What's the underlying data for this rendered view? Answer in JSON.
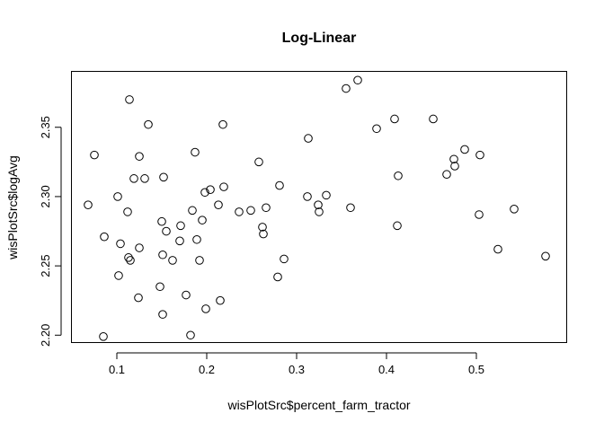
{
  "chart_data": {
    "type": "scatter",
    "title": "Log-Linear",
    "xlabel": "wisPlotSrc$percent_farm_tractor",
    "ylabel": "wisPlotSrc$logAvg",
    "xlim": [
      0.05,
      0.6
    ],
    "ylim": [
      2.195,
      2.39
    ],
    "x_ticks": [
      0.1,
      0.2,
      0.3,
      0.4,
      0.5
    ],
    "x_tick_labels": [
      "0.1",
      "0.2",
      "0.3",
      "0.4",
      "0.5"
    ],
    "y_ticks": [
      2.2,
      2.25,
      2.3,
      2.35
    ],
    "y_tick_labels": [
      "2.20",
      "2.25",
      "2.30",
      "2.35"
    ],
    "grid": false,
    "marker": "open-circle",
    "points": [
      {
        "x": 0.068,
        "y": 2.294
      },
      {
        "x": 0.075,
        "y": 2.33
      },
      {
        "x": 0.085,
        "y": 2.199
      },
      {
        "x": 0.086,
        "y": 2.271
      },
      {
        "x": 0.101,
        "y": 2.3
      },
      {
        "x": 0.102,
        "y": 2.243
      },
      {
        "x": 0.104,
        "y": 2.266
      },
      {
        "x": 0.112,
        "y": 2.289
      },
      {
        "x": 0.113,
        "y": 2.256
      },
      {
        "x": 0.114,
        "y": 2.37
      },
      {
        "x": 0.115,
        "y": 2.254
      },
      {
        "x": 0.119,
        "y": 2.313
      },
      {
        "x": 0.124,
        "y": 2.227
      },
      {
        "x": 0.125,
        "y": 2.263
      },
      {
        "x": 0.125,
        "y": 2.329
      },
      {
        "x": 0.131,
        "y": 2.313
      },
      {
        "x": 0.135,
        "y": 2.352
      },
      {
        "x": 0.148,
        "y": 2.235
      },
      {
        "x": 0.15,
        "y": 2.282
      },
      {
        "x": 0.151,
        "y": 2.215
      },
      {
        "x": 0.151,
        "y": 2.258
      },
      {
        "x": 0.152,
        "y": 2.314
      },
      {
        "x": 0.155,
        "y": 2.275
      },
      {
        "x": 0.162,
        "y": 2.254
      },
      {
        "x": 0.17,
        "y": 2.268
      },
      {
        "x": 0.171,
        "y": 2.279
      },
      {
        "x": 0.177,
        "y": 2.229
      },
      {
        "x": 0.182,
        "y": 2.2
      },
      {
        "x": 0.184,
        "y": 2.29
      },
      {
        "x": 0.187,
        "y": 2.332
      },
      {
        "x": 0.189,
        "y": 2.269
      },
      {
        "x": 0.192,
        "y": 2.254
      },
      {
        "x": 0.195,
        "y": 2.283
      },
      {
        "x": 0.198,
        "y": 2.303
      },
      {
        "x": 0.199,
        "y": 2.219
      },
      {
        "x": 0.204,
        "y": 2.305
      },
      {
        "x": 0.213,
        "y": 2.294
      },
      {
        "x": 0.215,
        "y": 2.225
      },
      {
        "x": 0.218,
        "y": 2.352
      },
      {
        "x": 0.219,
        "y": 2.307
      },
      {
        "x": 0.236,
        "y": 2.289
      },
      {
        "x": 0.249,
        "y": 2.29
      },
      {
        "x": 0.258,
        "y": 2.325
      },
      {
        "x": 0.262,
        "y": 2.278
      },
      {
        "x": 0.263,
        "y": 2.273
      },
      {
        "x": 0.266,
        "y": 2.292
      },
      {
        "x": 0.279,
        "y": 2.242
      },
      {
        "x": 0.281,
        "y": 2.308
      },
      {
        "x": 0.286,
        "y": 2.255
      },
      {
        "x": 0.312,
        "y": 2.3
      },
      {
        "x": 0.313,
        "y": 2.342
      },
      {
        "x": 0.324,
        "y": 2.294
      },
      {
        "x": 0.325,
        "y": 2.289
      },
      {
        "x": 0.333,
        "y": 2.301
      },
      {
        "x": 0.355,
        "y": 2.378
      },
      {
        "x": 0.36,
        "y": 2.292
      },
      {
        "x": 0.368,
        "y": 2.384
      },
      {
        "x": 0.389,
        "y": 2.349
      },
      {
        "x": 0.409,
        "y": 2.356
      },
      {
        "x": 0.412,
        "y": 2.279
      },
      {
        "x": 0.413,
        "y": 2.315
      },
      {
        "x": 0.452,
        "y": 2.356
      },
      {
        "x": 0.467,
        "y": 2.316
      },
      {
        "x": 0.475,
        "y": 2.327
      },
      {
        "x": 0.476,
        "y": 2.322
      },
      {
        "x": 0.487,
        "y": 2.334
      },
      {
        "x": 0.503,
        "y": 2.287
      },
      {
        "x": 0.504,
        "y": 2.33
      },
      {
        "x": 0.524,
        "y": 2.262
      },
      {
        "x": 0.542,
        "y": 2.291
      },
      {
        "x": 0.577,
        "y": 2.257
      }
    ]
  }
}
